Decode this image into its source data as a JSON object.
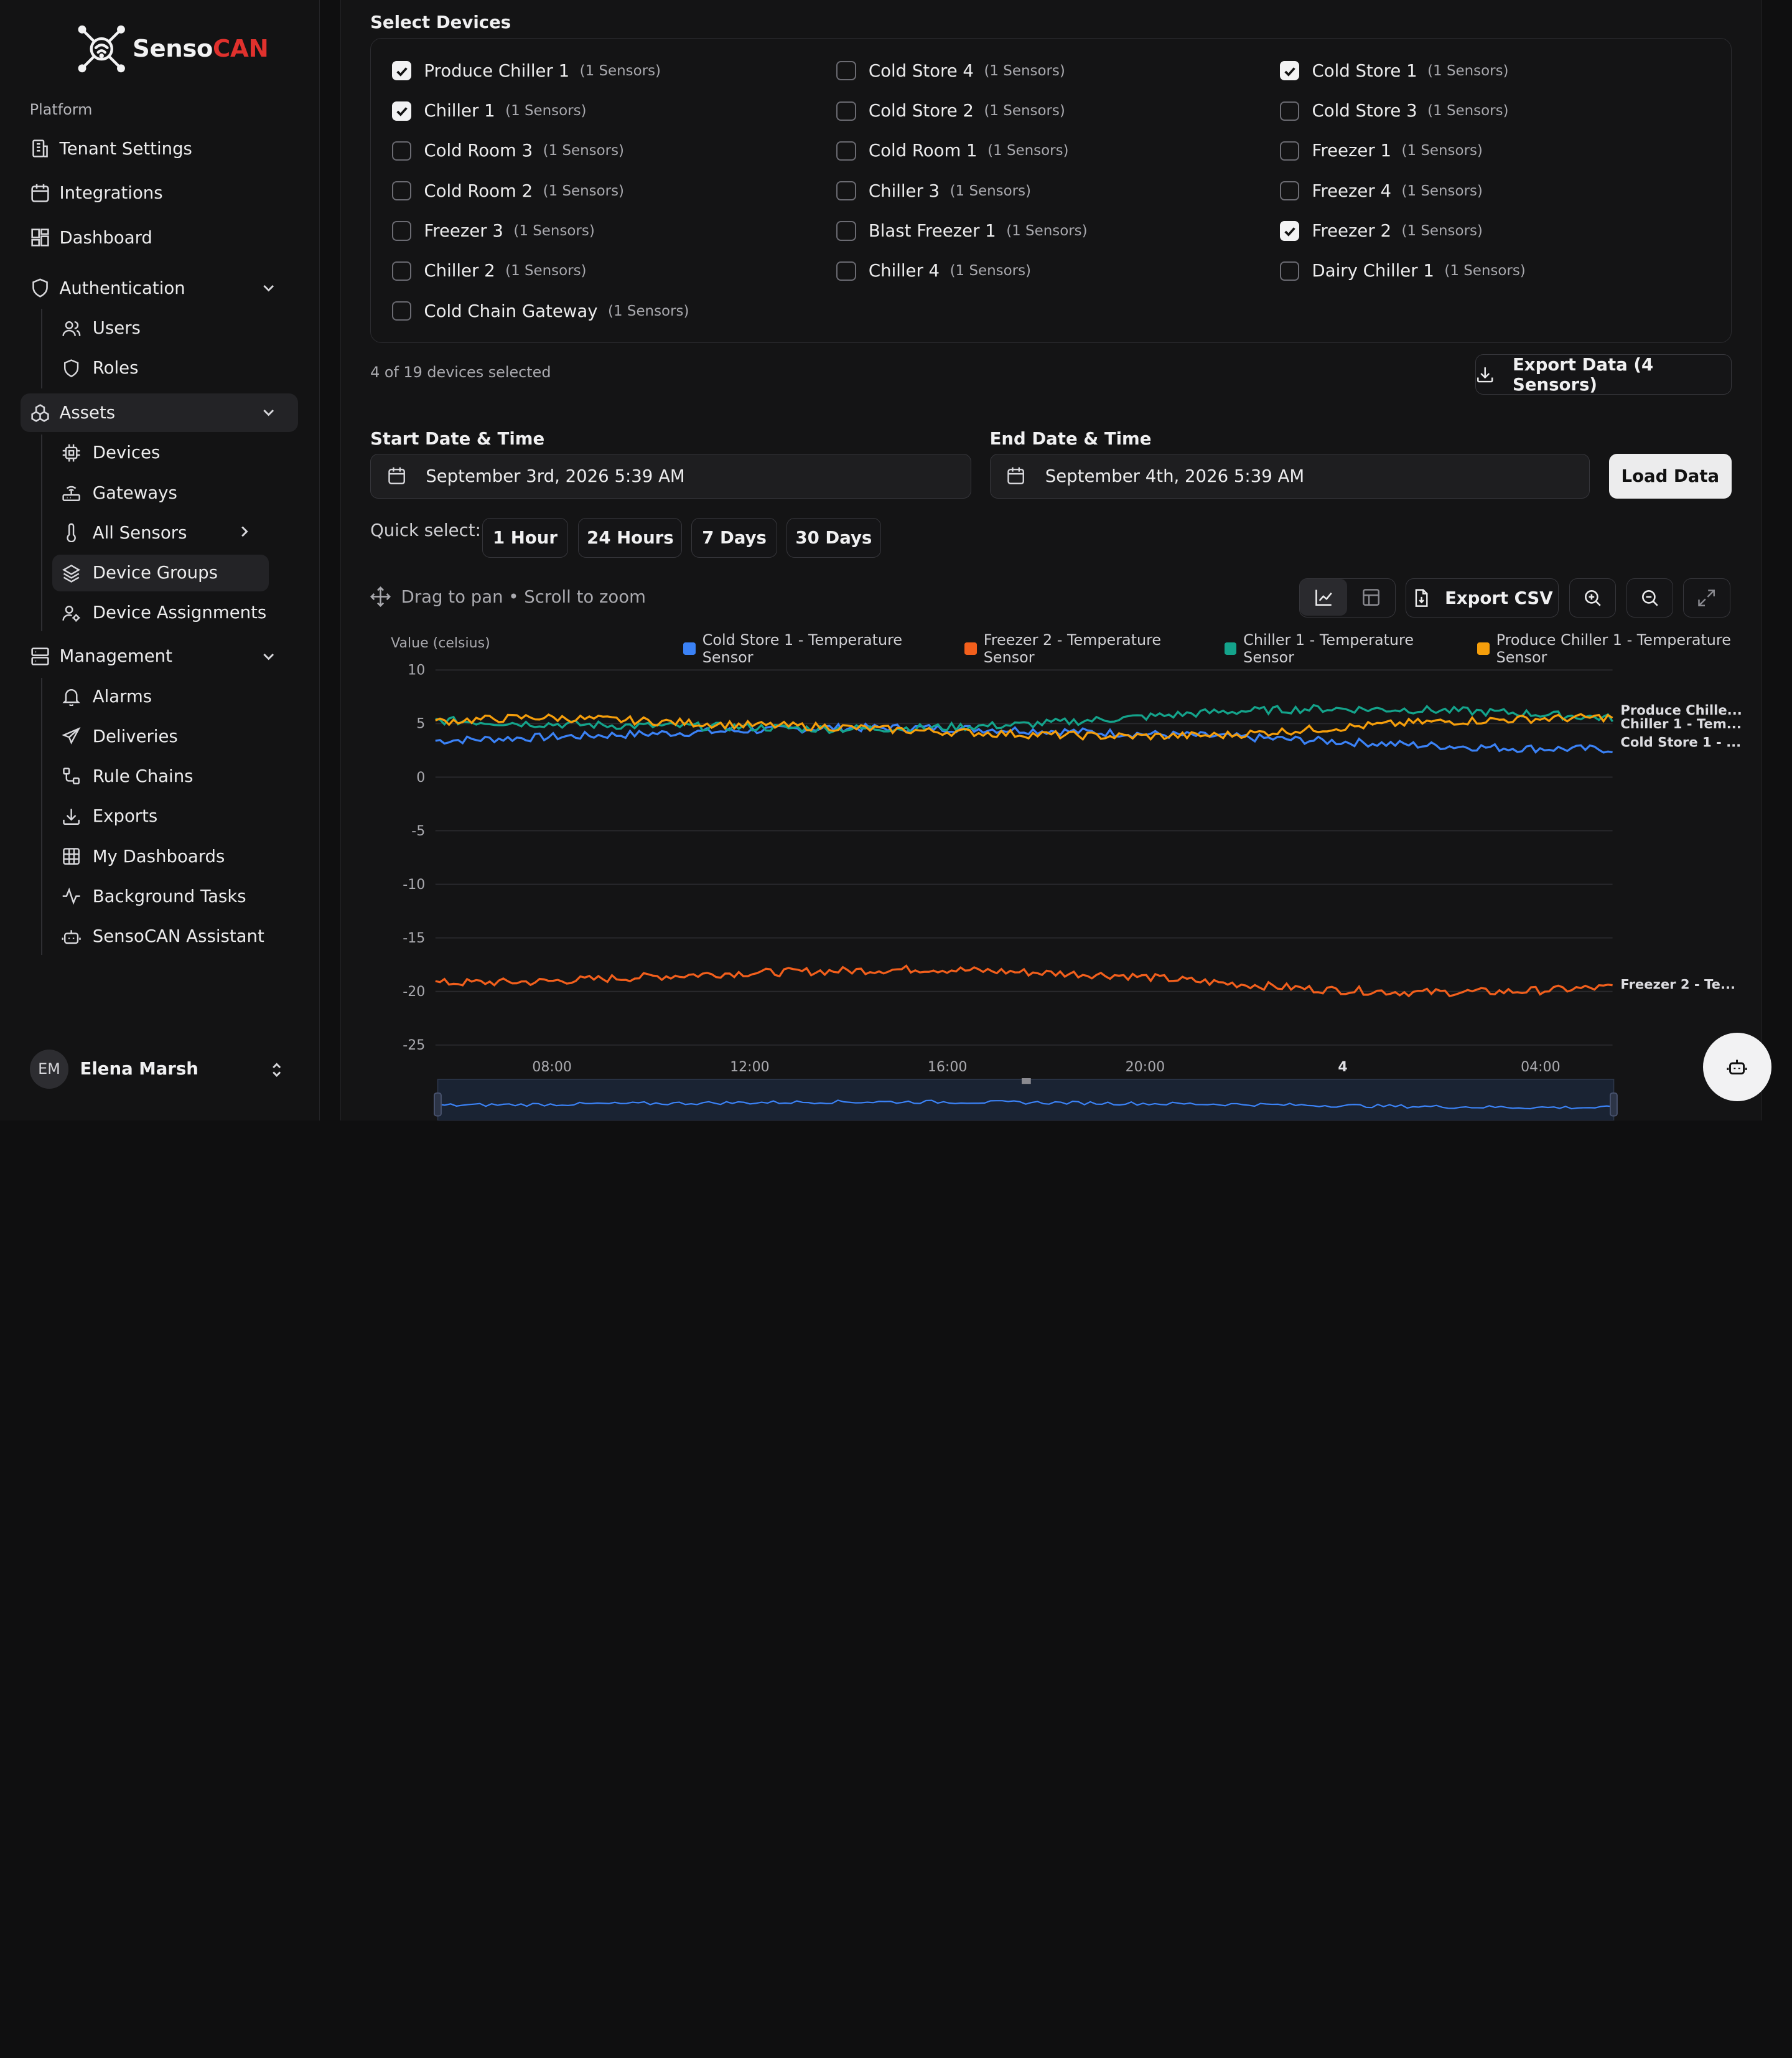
{
  "brand": {
    "name_a": "Senso",
    "name_b": "CAN"
  },
  "sidebar": {
    "section": "Platform",
    "items": {
      "tenant": "Tenant Settings",
      "integrations": "Integrations",
      "dashboard": "Dashboard",
      "authentication": "Authentication",
      "users": "Users",
      "roles": "Roles",
      "assets": "Assets",
      "devices": "Devices",
      "gateways": "Gateways",
      "all_sensors": "All Sensors",
      "device_groups": "Device Groups",
      "device_assignments": "Device Assignments",
      "management": "Management",
      "alarms": "Alarms",
      "deliveries": "Deliveries",
      "rule_chains": "Rule Chains",
      "exports": "Exports",
      "my_dashboards": "My Dashboards",
      "background_tasks": "Background Tasks",
      "assistant": "SensoCAN Assistant"
    },
    "user": {
      "initials": "EM",
      "name": "Elena Marsh"
    }
  },
  "select_devices": {
    "title": "Select Devices",
    "devices": [
      {
        "name": "Produce Chiller 1",
        "count": "(1 Sensors)",
        "checked": true
      },
      {
        "name": "Chiller 1",
        "count": "(1 Sensors)",
        "checked": true
      },
      {
        "name": "Cold Room 3",
        "count": "(1 Sensors)",
        "checked": false
      },
      {
        "name": "Cold Room 2",
        "count": "(1 Sensors)",
        "checked": false
      },
      {
        "name": "Freezer 3",
        "count": "(1 Sensors)",
        "checked": false
      },
      {
        "name": "Chiller 2",
        "count": "(1 Sensors)",
        "checked": false
      },
      {
        "name": "Cold Chain Gateway",
        "count": "(1 Sensors)",
        "checked": false
      },
      {
        "name": "Cold Store 4",
        "count": "(1 Sensors)",
        "checked": false
      },
      {
        "name": "Cold Store 2",
        "count": "(1 Sensors)",
        "checked": false
      },
      {
        "name": "Cold Room 1",
        "count": "(1 Sensors)",
        "checked": false
      },
      {
        "name": "Chiller 3",
        "count": "(1 Sensors)",
        "checked": false
      },
      {
        "name": "Blast Freezer 1",
        "count": "(1 Sensors)",
        "checked": false
      },
      {
        "name": "Chiller 4",
        "count": "(1 Sensors)",
        "checked": false
      },
      {
        "name": "Cold Store 1",
        "count": "(1 Sensors)",
        "checked": true
      },
      {
        "name": "Cold Store 3",
        "count": "(1 Sensors)",
        "checked": false
      },
      {
        "name": "Freezer 1",
        "count": "(1 Sensors)",
        "checked": false
      },
      {
        "name": "Freezer 4",
        "count": "(1 Sensors)",
        "checked": false
      },
      {
        "name": "Freezer 2",
        "count": "(1 Sensors)",
        "checked": true
      },
      {
        "name": "Dairy Chiller 1",
        "count": "(1 Sensors)",
        "checked": false
      }
    ],
    "selected_text": "4 of 19 devices selected",
    "export_label": "Export Data (4 Sensors)"
  },
  "range": {
    "start_label": "Start Date & Time",
    "start_value": "September 3rd, 2026 5:39 AM",
    "end_label": "End Date & Time",
    "end_value": "September 4th, 2026 5:39 AM",
    "load_label": "Load Data",
    "quick_label": "Quick select:",
    "quick": [
      "1 Hour",
      "24 Hours",
      "7 Days",
      "30 Days"
    ]
  },
  "chart_toolbar": {
    "hint": "Drag to pan • Scroll to zoom",
    "export_csv": "Export CSV"
  },
  "chart_data": {
    "type": "line",
    "ylabel": "Value (celsius)",
    "ylim": [
      -25,
      10
    ],
    "yticks": [
      10,
      5,
      0,
      -5,
      -10,
      -15,
      -20,
      -25
    ],
    "x_ticks": [
      "08:00",
      "12:00",
      "16:00",
      "20:00",
      "4",
      "04:00"
    ],
    "grid": true,
    "legend_position": "top",
    "series": [
      {
        "name": "Cold Store 1 - Temperature Sensor",
        "end_label": "Cold Store 1 - ...",
        "color": "#3b82f6",
        "values": [
          3.4,
          3.7,
          4.0,
          4.3,
          4.6,
          4.6,
          4.4,
          4.1,
          3.8,
          3.4,
          3.0,
          2.7,
          2.6
        ]
      },
      {
        "name": "Freezer 2 - Temperature Sensor",
        "end_label": "Freezer 2 - Te...",
        "color": "#f25f1c",
        "values": [
          -19.2,
          -19.1,
          -18.7,
          -18.3,
          -18.1,
          -17.9,
          -18.2,
          -18.5,
          -19.2,
          -19.8,
          -20.1,
          -20.0,
          -19.6
        ]
      },
      {
        "name": "Chiller 1 - Temperature Sensor",
        "end_label": "Chiller 1 - Tem...",
        "color": "#14a38b",
        "values": [
          5.3,
          5.0,
          4.8,
          4.7,
          4.5,
          4.6,
          4.9,
          5.5,
          6.1,
          6.4,
          6.3,
          6.0,
          5.5
        ]
      },
      {
        "name": "Produce Chiller 1 - Temperature Sensor",
        "end_label": "Produce Chille...",
        "color": "#f59e0b",
        "values": [
          5.2,
          5.6,
          5.3,
          4.9,
          4.7,
          4.3,
          4.0,
          3.8,
          3.9,
          4.5,
          5.1,
          5.4,
          5.6
        ]
      }
    ]
  },
  "colors": {
    "brand_red": "#e0312d",
    "panel_border": "#2b2b2f"
  }
}
